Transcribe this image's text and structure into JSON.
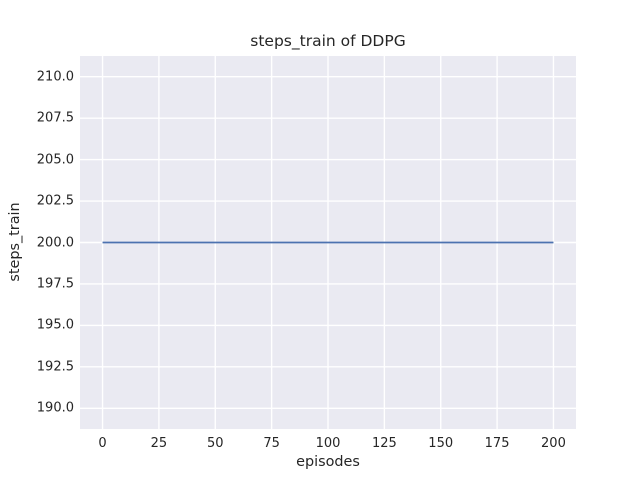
{
  "figure": {
    "kind": "matplotlib-seaborn-figure",
    "background": "#ffffff"
  },
  "chart_data": {
    "type": "line",
    "title": "steps_train of DDPG",
    "xlabel": "episodes",
    "ylabel": "steps_train",
    "xlim": [
      -10,
      210
    ],
    "ylim": [
      188.75,
      211.25
    ],
    "x_ticks": [
      0,
      25,
      50,
      75,
      100,
      125,
      150,
      175,
      200
    ],
    "x_tick_labels": [
      "0",
      "25",
      "50",
      "75",
      "100",
      "125",
      "150",
      "175",
      "200"
    ],
    "y_ticks": [
      190.0,
      192.5,
      195.0,
      197.5,
      200.0,
      202.5,
      205.0,
      207.5,
      210.0
    ],
    "y_tick_labels": [
      "190.0",
      "192.5",
      "195.0",
      "197.5",
      "200.0",
      "202.5",
      "205.0",
      "207.5",
      "210.0"
    ],
    "grid": true,
    "legend": false,
    "series": [
      {
        "name": "steps_train",
        "color": "#4c72b0",
        "x": [
          0,
          200
        ],
        "y": [
          200,
          200
        ],
        "description": "constant value 200 for every episode"
      }
    ],
    "style": {
      "plot_bg": "#eaeaf2",
      "grid_color": "#ffffff",
      "text_color": "#262626",
      "line_width": 1.8,
      "grid_width": 1.4
    }
  }
}
